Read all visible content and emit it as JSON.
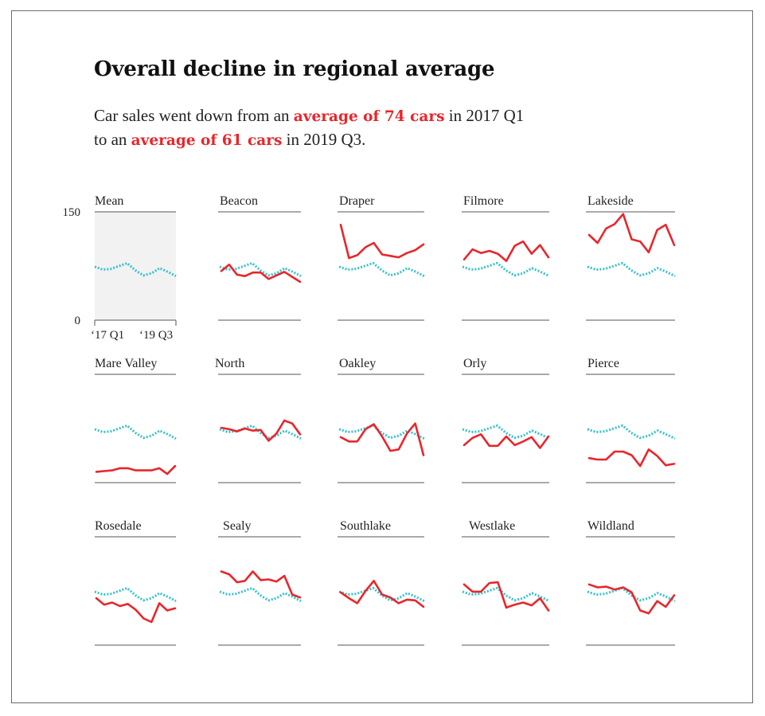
{
  "title": "Overall decline in regional average",
  "subtitle": {
    "line1_pre": "Car sales went down from an ",
    "line1_hl": "average of 74 cars",
    "line1_post": " in 2017 Q1",
    "line2_pre": "to an ",
    "line2_hl": "average of 61 cars",
    "line2_post": " in 2019 Q3."
  },
  "colors": {
    "region": "#e8262b",
    "mean": "#35c2cf",
    "mean_panel_bg": "#f2f2f2",
    "rule": "#555555"
  },
  "chart_data": {
    "type": "line",
    "layout": "small-multiples",
    "x": [
      "2017 Q1",
      "2017 Q2",
      "2017 Q3",
      "2017 Q4",
      "2018 Q1",
      "2018 Q2",
      "2018 Q3",
      "2018 Q4",
      "2019 Q1",
      "2019 Q2",
      "2019 Q3"
    ],
    "x_tick_labels": [
      "‘17 Q1",
      "‘19 Q3"
    ],
    "ylim": [
      0,
      150
    ],
    "y_tick_labels": [
      "150",
      "0"
    ],
    "mean_series": [
      74,
      70,
      71,
      75,
      79,
      69,
      62,
      65,
      72,
      67,
      61
    ],
    "panels": [
      {
        "name": "Mean",
        "values": null
      },
      {
        "name": "Beacon",
        "values": [
          68,
          77,
          63,
          61,
          66,
          66,
          57,
          62,
          67,
          60,
          53
        ]
      },
      {
        "name": "Draper",
        "values": [
          132,
          86,
          90,
          101,
          107,
          91,
          89,
          87,
          93,
          97,
          105
        ]
      },
      {
        "name": "Filmore",
        "values": [
          84,
          98,
          93,
          96,
          92,
          82,
          103,
          109,
          92,
          104,
          87
        ]
      },
      {
        "name": "Lakeside",
        "values": [
          118,
          107,
          127,
          133,
          147,
          112,
          109,
          94,
          125,
          132,
          104
        ]
      },
      {
        "name": "Mare Valley",
        "values": [
          15,
          16,
          17,
          20,
          20,
          17,
          17,
          17,
          20,
          12,
          23
        ]
      },
      {
        "name": "North",
        "values": [
          76,
          74,
          71,
          75,
          72,
          73,
          58,
          68,
          86,
          82,
          67
        ]
      },
      {
        "name": "Oakley",
        "values": [
          63,
          57,
          57,
          74,
          81,
          64,
          44,
          46,
          68,
          82,
          38
        ]
      },
      {
        "name": "Orly",
        "values": [
          52,
          62,
          67,
          51,
          51,
          64,
          52,
          57,
          63,
          48,
          64
        ]
      },
      {
        "name": "Pierce",
        "values": [
          34,
          32,
          32,
          43,
          43,
          38,
          23,
          46,
          37,
          24,
          26
        ]
      },
      {
        "name": "Rosedale",
        "values": [
          65,
          56,
          59,
          54,
          57,
          49,
          37,
          32,
          58,
          48,
          51
        ]
      },
      {
        "name": "Sealy",
        "values": [
          102,
          98,
          87,
          89,
          102,
          90,
          91,
          88,
          96,
          70,
          66
        ]
      },
      {
        "name": "Southlake",
        "values": [
          73,
          65,
          58,
          75,
          89,
          70,
          66,
          58,
          63,
          62,
          53
        ]
      },
      {
        "name": "Westlake",
        "values": [
          84,
          74,
          74,
          86,
          87,
          52,
          56,
          59,
          55,
          65,
          48
        ]
      },
      {
        "name": "Wildland",
        "values": [
          84,
          80,
          81,
          77,
          80,
          73,
          48,
          44,
          61,
          53,
          69
        ]
      }
    ]
  }
}
